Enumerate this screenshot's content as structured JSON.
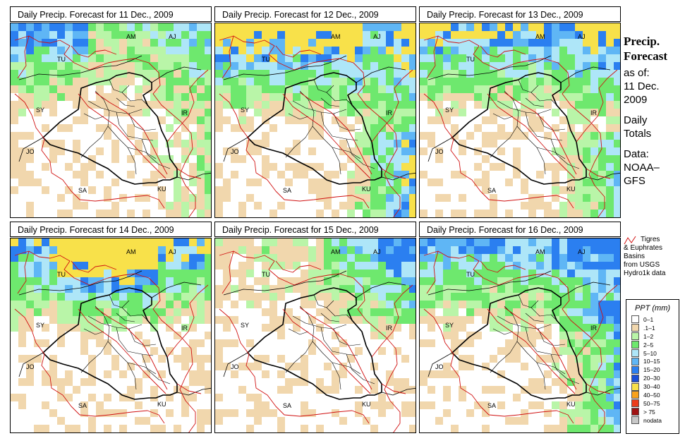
{
  "panels": [
    {
      "title": "Daily Precip. Forecast for  11 Dec., 2009",
      "level": 1
    },
    {
      "title": "Daily Precip. Forecast for  12 Dec., 2009",
      "level": 2
    },
    {
      "title": "Daily Precip. Forecast for  13 Dec., 2009",
      "level": 2
    },
    {
      "title": "Daily Precip. Forecast for  14 Dec., 2009",
      "level": 2
    },
    {
      "title": "Daily Precip. Forecast for  15 Dec., 2009",
      "level": 0
    },
    {
      "title": "Daily Precip. Forecast for  16 Dec., 2009",
      "level": 1
    }
  ],
  "map_labels": {
    "am": "AM",
    "aj": "AJ",
    "tu": "TU",
    "sy": "SY",
    "ir": "IR",
    "jo": "JO",
    "sa": "SA",
    "ku": "KU"
  },
  "side": {
    "heading1": "Precip.",
    "heading2": "Forecast",
    "asof": "as of:",
    "date1": "11 Dec.",
    "date2": "2009",
    "daily1": "Daily",
    "daily2": "Totals",
    "data1": "Data:",
    "data2": "NOAA–",
    "data3": "GFS"
  },
  "basins": {
    "line1": "Tigres",
    "line2": "& Euphrates",
    "line3": "Basins",
    "line4": "from USGS",
    "line5": "Hydro1k data"
  },
  "legend": {
    "title": "PPT (mm)",
    "items": [
      {
        "label": "0–1",
        "color": "#ffffff"
      },
      {
        "label": ".1–1",
        "color": "#f1d7ad"
      },
      {
        "label": "1–2",
        "color": "#b9f5a8"
      },
      {
        "label": "2–5",
        "color": "#6ee86e"
      },
      {
        "label": "5–10",
        "color": "#aee6f8"
      },
      {
        "label": "10–15",
        "color": "#5fb6f5"
      },
      {
        "label": "15–20",
        "color": "#2b7ff0"
      },
      {
        "label": "20–30",
        "color": "#1a4fd8"
      },
      {
        "label": "30–40",
        "color": "#f8e14a"
      },
      {
        "label": "40–50",
        "color": "#f8a21b"
      },
      {
        "label": "50–75",
        "color": "#ec3c1a"
      },
      {
        "label": "> 75",
        "color": "#a01212"
      },
      {
        "label": "nodata",
        "color": "#c8c8c8"
      }
    ]
  }
}
